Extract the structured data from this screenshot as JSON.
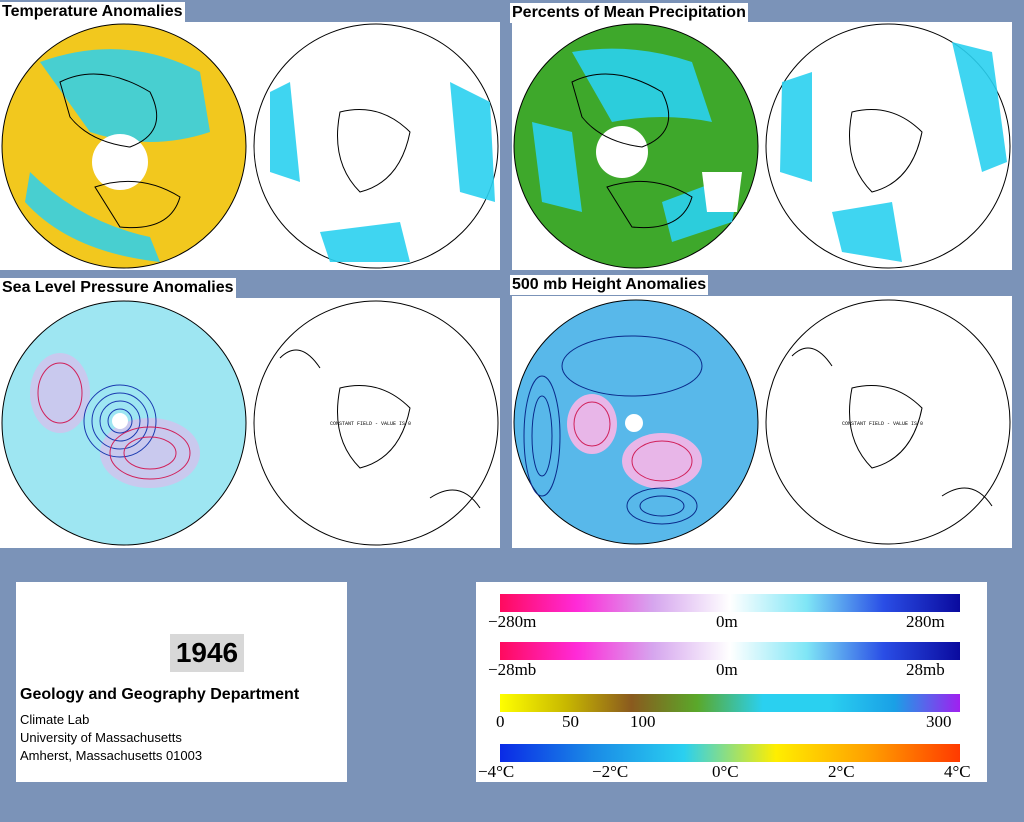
{
  "panels": [
    {
      "id": "temperature",
      "title": "Temperature Anomalies",
      "left_fill": "#f2c81e",
      "left_patch": "#2ad0f0",
      "right_fill": "#ffffff",
      "right_patch": "#2ad0f0",
      "constant_text": ""
    },
    {
      "id": "precipitation",
      "title": "Percents of Mean Precipitation",
      "left_fill": "#3ea82b",
      "left_patch": "#2ad0f0",
      "right_fill": "#ffffff",
      "right_patch": "#2ad0f0",
      "constant_text": ""
    },
    {
      "id": "slp",
      "title": "Sea Level Pressure Anomalies",
      "left_fill": "#9ee6f2",
      "left_patch": "#c9c9ee",
      "right_fill": "#ffffff",
      "right_patch": "#ffffff",
      "constant_text": "CONSTANT FIELD - VALUE IS 0"
    },
    {
      "id": "height500",
      "title": "500 mb Height Anomalies",
      "left_fill": "#58b8ea",
      "left_patch": "#e8b6e8",
      "right_fill": "#ffffff",
      "right_patch": "#ffffff",
      "constant_text": "CONSTANT FIELD - VALUE IS 0"
    }
  ],
  "info": {
    "year": "1946",
    "department": "Geology and Geography Department",
    "lines": [
      "Climate Lab",
      "University of Massachusetts",
      "Amherst, Massachusetts 01003"
    ]
  },
  "legend": [
    {
      "id": "height-scale",
      "gradient": [
        "#ff0a5e",
        "#ff2ad8",
        "#d6a6ee",
        "#ffffff",
        "#7fe6f6",
        "#2a4ee6",
        "#0a0a9e"
      ],
      "labels": [
        "−280m",
        "0m",
        "280m"
      ]
    },
    {
      "id": "pressure-scale",
      "gradient": [
        "#ff0a5e",
        "#ff2ad8",
        "#d6a6ee",
        "#ffffff",
        "#7fe6f6",
        "#2a4ee6",
        "#0a0a9e"
      ],
      "labels": [
        "−28mb",
        "0m",
        "28mb"
      ]
    },
    {
      "id": "precip-scale",
      "gradient": [
        "#ffff00",
        "#c8b800",
        "#8a5a1e",
        "#5aa82a",
        "#2ad0f0",
        "#2ad0f0",
        "#1aa0e6",
        "#a020f0"
      ],
      "labels": [
        "0",
        "50",
        "100",
        "300"
      ]
    },
    {
      "id": "temp-scale",
      "gradient": [
        "#0a2ae6",
        "#1a8ae6",
        "#2ad0f0",
        "#ffee00",
        "#ffa000",
        "#ff3a00"
      ],
      "labels": [
        "−4°C",
        "−2°C",
        "0°C",
        "2°C",
        "4°C"
      ]
    }
  ]
}
